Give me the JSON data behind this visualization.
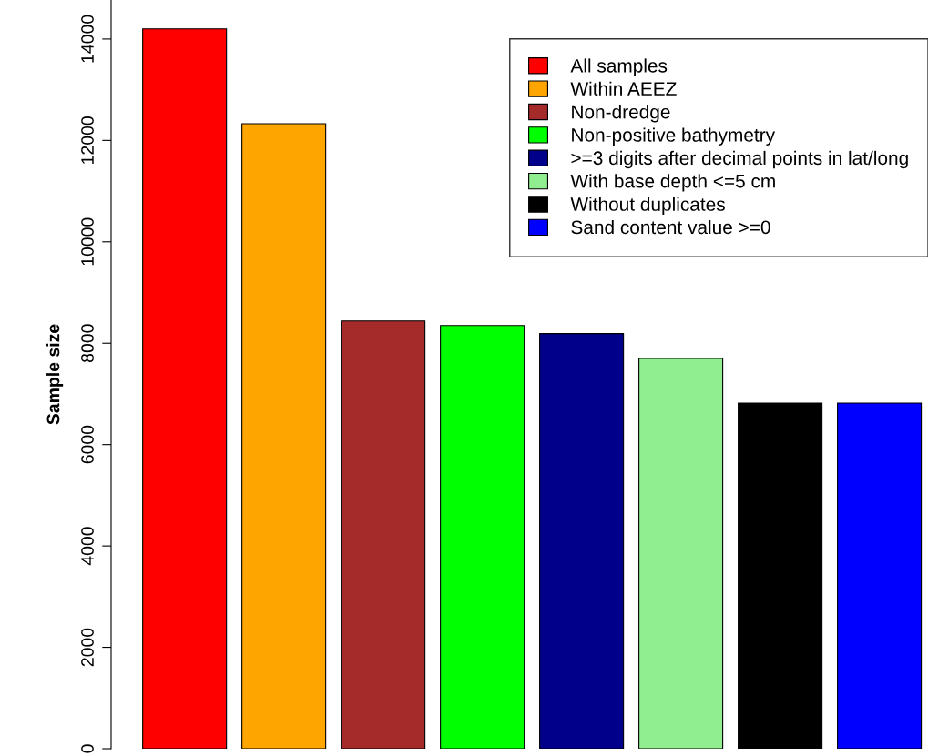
{
  "chart_data": {
    "type": "bar",
    "ylabel": "Sample size",
    "categories": [
      null,
      null,
      null,
      null,
      null,
      null,
      null,
      null
    ],
    "series": [
      {
        "name": "All samples",
        "color": "#ff0000",
        "values": [
          14200,
          null,
          null,
          null,
          null,
          null,
          null,
          null
        ]
      },
      {
        "name": "Within AEEZ",
        "color": "#ffa500",
        "values": [
          null,
          12330,
          null,
          null,
          null,
          null,
          null,
          null
        ]
      },
      {
        "name": "Non-dredge",
        "color": "#a52a2a",
        "values": [
          null,
          null,
          8440,
          null,
          null,
          null,
          null,
          null
        ]
      },
      {
        "name": "Non-positive bathymetry",
        "color": "#00ff00",
        "values": [
          null,
          null,
          null,
          8350,
          null,
          null,
          null,
          null
        ]
      },
      {
        "name": ">=3 digits after decimal points in lat/long",
        "color": "#00008b",
        "values": [
          null,
          null,
          null,
          null,
          8190,
          null,
          null,
          null
        ]
      },
      {
        "name": "With base depth <=5 cm",
        "color": "#90ee90",
        "values": [
          null,
          null,
          null,
          null,
          null,
          7700,
          null,
          null
        ]
      },
      {
        "name": "Without duplicates",
        "color": "#000000",
        "values": [
          null,
          null,
          null,
          null,
          null,
          null,
          6820,
          null
        ]
      },
      {
        "name": "Sand content value >=0",
        "color": "#0000ff",
        "values": [
          null,
          null,
          null,
          null,
          null,
          null,
          null,
          6820
        ]
      }
    ],
    "ylim": [
      0,
      14770
    ],
    "yticks": [
      0,
      2000,
      4000,
      6000,
      8000,
      10000,
      12000,
      14000
    ],
    "stacked": true,
    "legend": "top right",
    "grid": false
  }
}
